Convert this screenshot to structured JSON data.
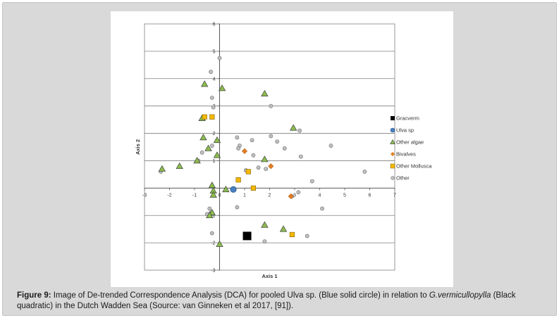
{
  "caption": {
    "label": "Figure 9:",
    "text_before_italic": " Image of De-trended Correspondence Analysis (DCA) for pooled Ulva sp. (Blue solid circle) in relation to ",
    "italic": "G.vermicullopylla",
    "text_after_italic": " (Black quadratic) in the Dutch Wadden Sea (Source: van Ginneken et al 2017, [91])."
  },
  "colors": {
    "gracverm": "#000000",
    "ulva": "#4a7fbf",
    "other_algae": "#8cbc4e",
    "bivalves": "#e67e22",
    "other_mollusca": "#f5b800",
    "other": "#bfbfbf",
    "grid": "#7f7f7f",
    "axis": "#595959"
  },
  "chart_data": {
    "type": "scatter",
    "xlabel": "Axis 1",
    "ylabel": "Axis 2",
    "xlim": [
      -3,
      7
    ],
    "ylim": [
      -3,
      6
    ],
    "x_ticks": [
      "-3",
      "-2",
      "-1",
      "0",
      "1",
      "2",
      "3",
      "4",
      "5",
      "6",
      "7"
    ],
    "y_ticks": [
      "-3",
      "-2",
      "-1",
      "1",
      "2",
      "3",
      "4",
      "5",
      "6"
    ],
    "grid": "horizontal",
    "legend_position": "right",
    "series": [
      {
        "name": "Gracverm",
        "marker": "square-large",
        "color": "#000000",
        "points": [
          [
            1.1,
            -1.75
          ]
        ]
      },
      {
        "name": "Ulva sp",
        "marker": "circle-large",
        "color": "#4a7fbf",
        "points": [
          [
            0.55,
            -0.05
          ]
        ]
      },
      {
        "name": "Other algae",
        "marker": "triangle",
        "color": "#8cbc4e",
        "points": [
          [
            -0.6,
            3.8
          ],
          [
            0.1,
            3.65
          ],
          [
            1.8,
            3.45
          ],
          [
            -0.7,
            2.55
          ],
          [
            2.95,
            2.2
          ],
          [
            -0.65,
            1.85
          ],
          [
            -0.1,
            1.75
          ],
          [
            -0.45,
            1.45
          ],
          [
            -0.1,
            1.2
          ],
          [
            1.8,
            1.05
          ],
          [
            -0.9,
            1.0
          ],
          [
            -1.6,
            0.8
          ],
          [
            -2.3,
            0.7
          ],
          [
            -0.3,
            0.1
          ],
          [
            0.25,
            -0.05
          ],
          [
            -0.25,
            -0.1
          ],
          [
            -0.25,
            -0.25
          ],
          [
            -0.3,
            -0.9
          ],
          [
            -0.4,
            -1.0
          ],
          [
            1.8,
            -1.35
          ],
          [
            2.55,
            -1.5
          ],
          [
            0.0,
            -2.05
          ]
        ]
      },
      {
        "name": "Bivalves",
        "marker": "diamond",
        "color": "#e67e22",
        "points": [
          [
            1.0,
            1.35
          ],
          [
            2.05,
            0.8
          ],
          [
            2.85,
            -0.3
          ]
        ]
      },
      {
        "name": "Other Mollusca",
        "marker": "square",
        "color": "#f5b800",
        "points": [
          [
            -0.6,
            2.6
          ],
          [
            -0.3,
            2.6
          ],
          [
            1.15,
            0.6
          ],
          [
            0.75,
            0.3
          ],
          [
            1.35,
            0.0
          ],
          [
            2.9,
            -1.7
          ]
        ]
      },
      {
        "name": "Other",
        "marker": "circle-small",
        "color": "#bfbfbf",
        "points": [
          [
            0.0,
            4.75
          ],
          [
            -0.35,
            4.25
          ],
          [
            -0.3,
            3.3
          ],
          [
            2.05,
            3.0
          ],
          [
            -0.25,
            2.95
          ],
          [
            3.2,
            2.1
          ],
          [
            2.05,
            1.9
          ],
          [
            0.7,
            1.85
          ],
          [
            1.3,
            1.75
          ],
          [
            2.3,
            1.7
          ],
          [
            -0.3,
            1.55
          ],
          [
            0.8,
            1.55
          ],
          [
            0.75,
            1.45
          ],
          [
            2.6,
            1.45
          ],
          [
            4.45,
            1.55
          ],
          [
            1.35,
            1.2
          ],
          [
            3.25,
            1.15
          ],
          [
            -0.7,
            1.3
          ],
          [
            -0.85,
            1.0
          ],
          [
            1.55,
            0.75
          ],
          [
            1.85,
            0.7
          ],
          [
            1.05,
            0.65
          ],
          [
            5.8,
            0.6
          ],
          [
            3.7,
            0.25
          ],
          [
            3.15,
            -0.15
          ],
          [
            2.9,
            -0.3
          ],
          [
            -2.35,
            0.6
          ],
          [
            -0.4,
            -0.75
          ],
          [
            0.7,
            -0.7
          ],
          [
            4.1,
            -0.75
          ],
          [
            -0.35,
            -0.9
          ],
          [
            -0.5,
            -0.95
          ],
          [
            -0.3,
            -1.65
          ],
          [
            1.8,
            -1.95
          ],
          [
            3.5,
            -1.75
          ]
        ]
      }
    ]
  }
}
